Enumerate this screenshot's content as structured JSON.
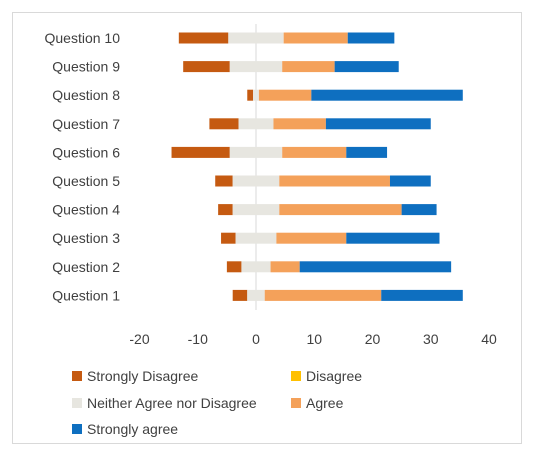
{
  "chart_data": {
    "type": "bar",
    "orientation": "horizontal",
    "stacked": "diverging",
    "categories": [
      "Question 1",
      "Question 2",
      "Question 3",
      "Question 4",
      "Question 5",
      "Question 6",
      "Question 7",
      "Question 8",
      "Question 9",
      "Question 10"
    ],
    "series": [
      {
        "name": "Strongly Disagree",
        "color": "#C55A11",
        "values": [
          2.5,
          2.5,
          2.5,
          2.5,
          3,
          10,
          5,
          1,
          8,
          8.5
        ]
      },
      {
        "name": "Disagree",
        "color": "#FFC000",
        "values": [
          0,
          0,
          0,
          0,
          0,
          0,
          0,
          0,
          0,
          0
        ]
      },
      {
        "name": "Neither Agree nor Disagree",
        "color": "#E7E6E0",
        "values": [
          3,
          5,
          7,
          8,
          8,
          9,
          6,
          1,
          9,
          9.5
        ]
      },
      {
        "name": "Agree",
        "color": "#F4A15A",
        "values": [
          20,
          5,
          12,
          21,
          19,
          11,
          9,
          9,
          9,
          11
        ]
      },
      {
        "name": "Strongly agree",
        "color": "#0E6FC0",
        "values": [
          14,
          26,
          16,
          6,
          7,
          7,
          18,
          26,
          11,
          8
        ]
      }
    ],
    "xlim": [
      -20,
      40
    ],
    "xticks": [
      "-20",
      "-10",
      "0",
      "10",
      "20",
      "30",
      "40"
    ],
    "neutral_split": "center",
    "legend_position": "bottom",
    "grid": false
  }
}
